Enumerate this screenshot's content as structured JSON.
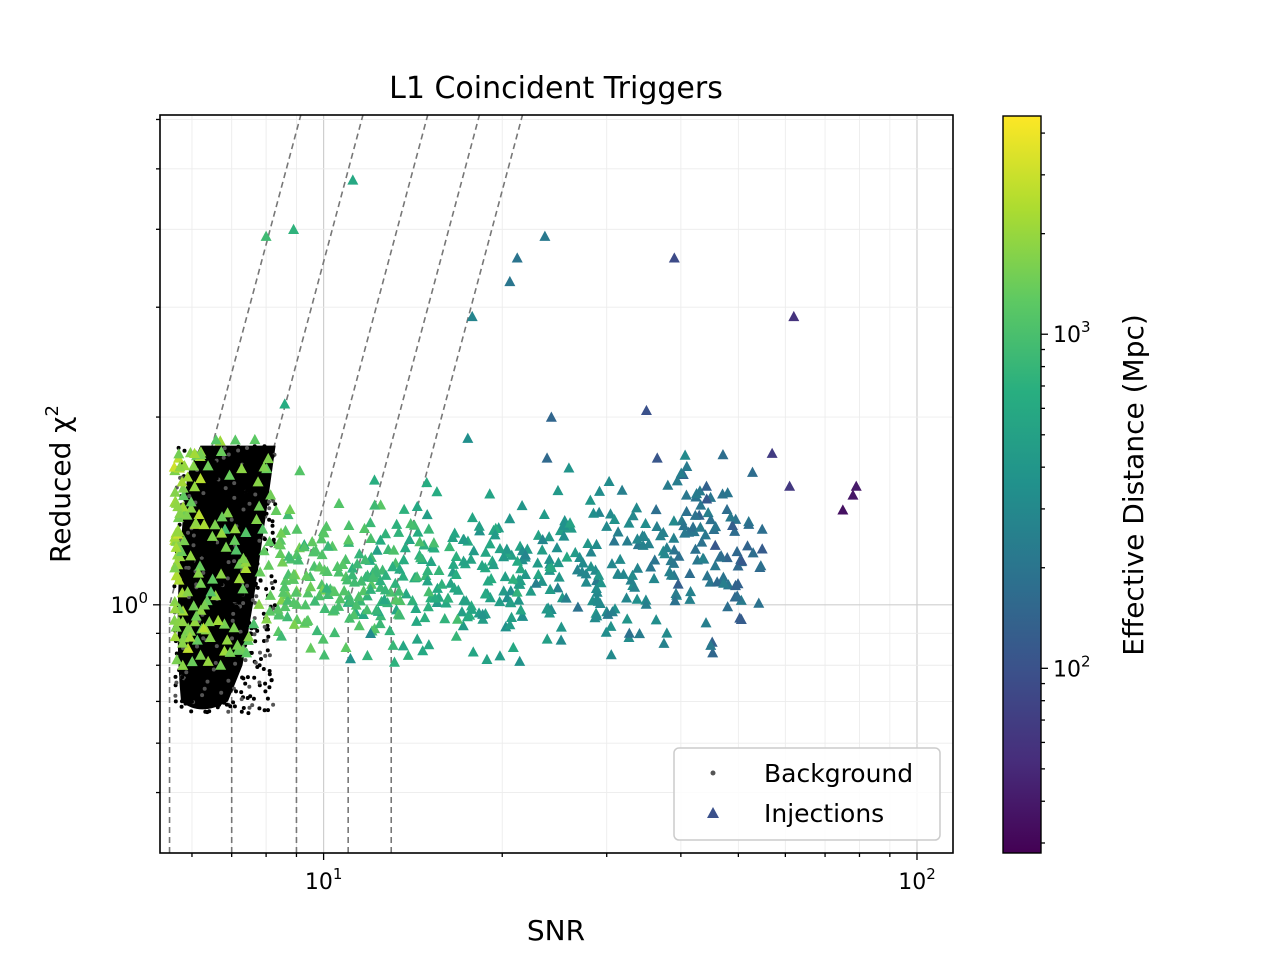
{
  "chart_data": {
    "type": "scatter",
    "title": "L1 Coincident Triggers",
    "xlabel": "SNR",
    "ylabel": "Reduced χ",
    "ylabel_sup": "2",
    "xscale": "log",
    "yscale": "log",
    "xlim": [
      5.3,
      115
    ],
    "ylim": [
      0.4,
      6.1
    ],
    "grid": true,
    "x_major_ticks": [
      {
        "value": 10,
        "base": "10",
        "exp": "1"
      },
      {
        "value": 100,
        "base": "10",
        "exp": "2"
      }
    ],
    "y_major_ticks": [
      {
        "value": 1,
        "base": "10",
        "exp": "0"
      }
    ],
    "legend": {
      "location": "lower right",
      "entries": [
        {
          "label": "Background",
          "marker": "dot",
          "color": "#555555"
        },
        {
          "label": "Injections",
          "marker": "triangle",
          "color": "#3b518b"
        }
      ]
    },
    "colorbar": {
      "label": "Effective Distance (Mpc)",
      "scale": "log",
      "range": [
        28,
        4500
      ],
      "colormap": "viridis",
      "ticks": [
        {
          "value": 100,
          "base": "10",
          "exp": "2"
        },
        {
          "value": 1000,
          "base": "10",
          "exp": "3"
        }
      ]
    },
    "threshold_lines": [
      {
        "snr_min": 5.5,
        "chisq_knee": 1.0
      },
      {
        "snr_min": 7.0,
        "chisq_knee": 1.0
      },
      {
        "snr_min": 9.0,
        "chisq_knee": 1.0
      },
      {
        "snr_min": 11.0,
        "chisq_knee": 1.0
      },
      {
        "snr_min": 13.0,
        "chisq_knee": 1.0
      }
    ],
    "background_region": {
      "snr_range": [
        5.6,
        8.3
      ],
      "chisq_range": [
        0.67,
        1.8
      ]
    },
    "series": [
      {
        "name": "Injections",
        "marker": "triangle",
        "points": [
          {
            "x": 8.0,
            "y": 3.9,
            "d": 900
          },
          {
            "x": 8.9,
            "y": 4.0,
            "d": 750
          },
          {
            "x": 11.2,
            "y": 4.8,
            "d": 600
          },
          {
            "x": 8.6,
            "y": 2.1,
            "d": 650
          },
          {
            "x": 23.6,
            "y": 3.9,
            "d": 220
          },
          {
            "x": 21.2,
            "y": 3.6,
            "d": 200
          },
          {
            "x": 20.6,
            "y": 3.3,
            "d": 210
          },
          {
            "x": 17.8,
            "y": 2.9,
            "d": 280
          },
          {
            "x": 39.0,
            "y": 3.6,
            "d": 90
          },
          {
            "x": 62.0,
            "y": 2.9,
            "d": 60
          },
          {
            "x": 24.2,
            "y": 2.0,
            "d": 150
          },
          {
            "x": 35.0,
            "y": 2.05,
            "d": 100
          },
          {
            "x": 17.5,
            "y": 1.85,
            "d": 350
          },
          {
            "x": 23.8,
            "y": 1.72,
            "d": 160
          },
          {
            "x": 36.5,
            "y": 1.72,
            "d": 110
          },
          {
            "x": 57.0,
            "y": 1.75,
            "d": 70
          },
          {
            "x": 79.0,
            "y": 1.55,
            "d": 40
          },
          {
            "x": 78.0,
            "y": 1.5,
            "d": 38
          },
          {
            "x": 75.0,
            "y": 1.42,
            "d": 35
          },
          {
            "x": 61.0,
            "y": 1.55,
            "d": 65
          },
          {
            "x": 12.0,
            "y": 0.9,
            "d": 320
          },
          {
            "x": 11.1,
            "y": 0.82,
            "d": 380
          },
          {
            "x": 6.3,
            "y": 1.0,
            "d": 1600
          },
          {
            "x": 5.9,
            "y": 1.05,
            "d": 1800
          },
          {
            "x": 6.1,
            "y": 0.96,
            "d": 1500
          },
          {
            "x": 6.5,
            "y": 1.1,
            "d": 1300
          }
        ],
        "cluster": {
          "snr_range": [
            5.6,
            55
          ],
          "chisq_center": 1.05,
          "count": 800
        }
      },
      {
        "name": "Background",
        "marker": "dot",
        "color": "#000000"
      }
    ]
  }
}
